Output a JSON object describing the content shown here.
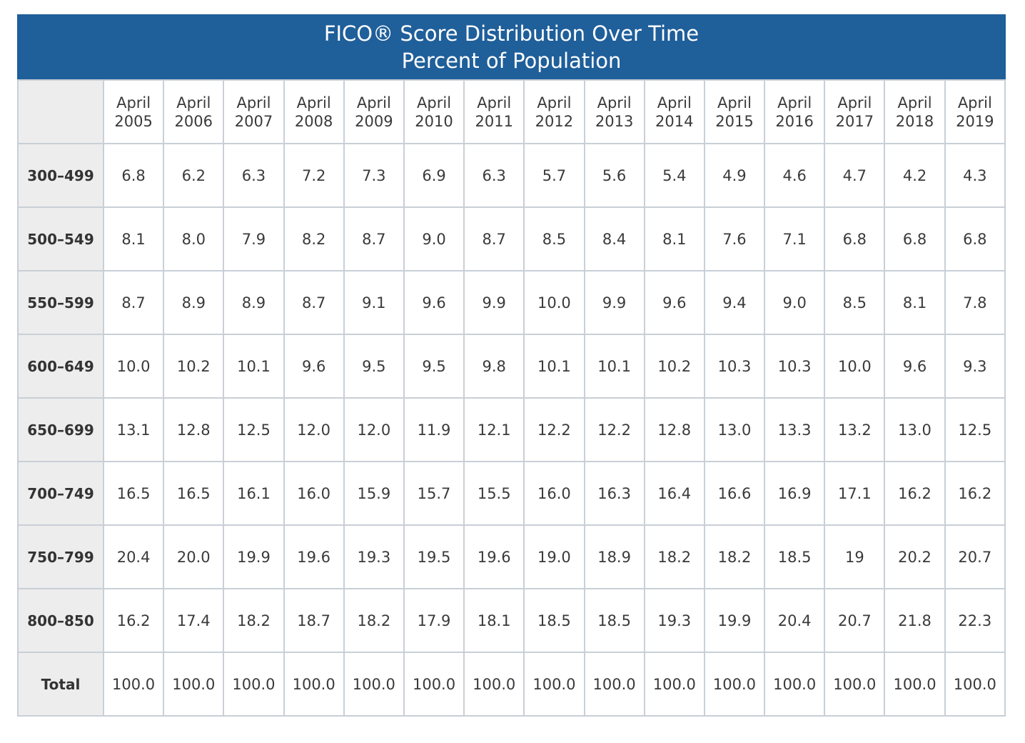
{
  "chart_data": {
    "type": "table",
    "title": "FICO® Score Distribution Over Time",
    "subtitle": "Percent of Population",
    "columns": [
      {
        "line1": "April",
        "line2": "2005"
      },
      {
        "line1": "April",
        "line2": "2006"
      },
      {
        "line1": "April",
        "line2": "2007"
      },
      {
        "line1": "April",
        "line2": "2008"
      },
      {
        "line1": "April",
        "line2": "2009"
      },
      {
        "line1": "April",
        "line2": "2010"
      },
      {
        "line1": "April",
        "line2": "2011"
      },
      {
        "line1": "April",
        "line2": "2012"
      },
      {
        "line1": "April",
        "line2": "2013"
      },
      {
        "line1": "April",
        "line2": "2014"
      },
      {
        "line1": "April",
        "line2": "2015"
      },
      {
        "line1": "April",
        "line2": "2016"
      },
      {
        "line1": "April",
        "line2": "2017"
      },
      {
        "line1": "April",
        "line2": "2018"
      },
      {
        "line1": "April",
        "line2": "2019"
      }
    ],
    "rows": [
      {
        "label": "300–499",
        "values": [
          "6.8",
          "6.2",
          "6.3",
          "7.2",
          "7.3",
          "6.9",
          "6.3",
          "5.7",
          "5.6",
          "5.4",
          "4.9",
          "4.6",
          "4.7",
          "4.2",
          "4.3"
        ]
      },
      {
        "label": "500–549",
        "values": [
          "8.1",
          "8.0",
          "7.9",
          "8.2",
          "8.7",
          "9.0",
          "8.7",
          "8.5",
          "8.4",
          "8.1",
          "7.6",
          "7.1",
          "6.8",
          "6.8",
          "6.8"
        ]
      },
      {
        "label": "550–599",
        "values": [
          "8.7",
          "8.9",
          "8.9",
          "8.7",
          "9.1",
          "9.6",
          "9.9",
          "10.0",
          "9.9",
          "9.6",
          "9.4",
          "9.0",
          "8.5",
          "8.1",
          "7.8"
        ]
      },
      {
        "label": "600–649",
        "values": [
          "10.0",
          "10.2",
          "10.1",
          "9.6",
          "9.5",
          "9.5",
          "9.8",
          "10.1",
          "10.1",
          "10.2",
          "10.3",
          "10.3",
          "10.0",
          "9.6",
          "9.3"
        ]
      },
      {
        "label": "650–699",
        "values": [
          "13.1",
          "12.8",
          "12.5",
          "12.0",
          "12.0",
          "11.9",
          "12.1",
          "12.2",
          "12.2",
          "12.8",
          "13.0",
          "13.3",
          "13.2",
          "13.0",
          "12.5"
        ]
      },
      {
        "label": "700–749",
        "values": [
          "16.5",
          "16.5",
          "16.1",
          "16.0",
          "15.9",
          "15.7",
          "15.5",
          "16.0",
          "16.3",
          "16.4",
          "16.6",
          "16.9",
          "17.1",
          "16.2",
          "16.2"
        ]
      },
      {
        "label": "750–799",
        "values": [
          "20.4",
          "20.0",
          "19.9",
          "19.6",
          "19.3",
          "19.5",
          "19.6",
          "19.0",
          "18.9",
          "18.2",
          "18.2",
          "18.5",
          "19",
          "20.2",
          "20.7"
        ]
      },
      {
        "label": "800–850",
        "values": [
          "16.2",
          "17.4",
          "18.2",
          "18.7",
          "18.2",
          "17.9",
          "18.1",
          "18.5",
          "18.5",
          "19.3",
          "19.9",
          "20.4",
          "20.7",
          "21.8",
          "22.3"
        ]
      },
      {
        "label": "Total",
        "values": [
          "100.0",
          "100.0",
          "100.0",
          "100.0",
          "100.0",
          "100.0",
          "100.0",
          "100.0",
          "100.0",
          "100.0",
          "100.0",
          "100.0",
          "100.0",
          "100.0",
          "100.0"
        ]
      }
    ],
    "colors": {
      "header_bg": "#1f5f9a",
      "label_bg": "#ededee",
      "grid": "#c9cfd6"
    }
  }
}
